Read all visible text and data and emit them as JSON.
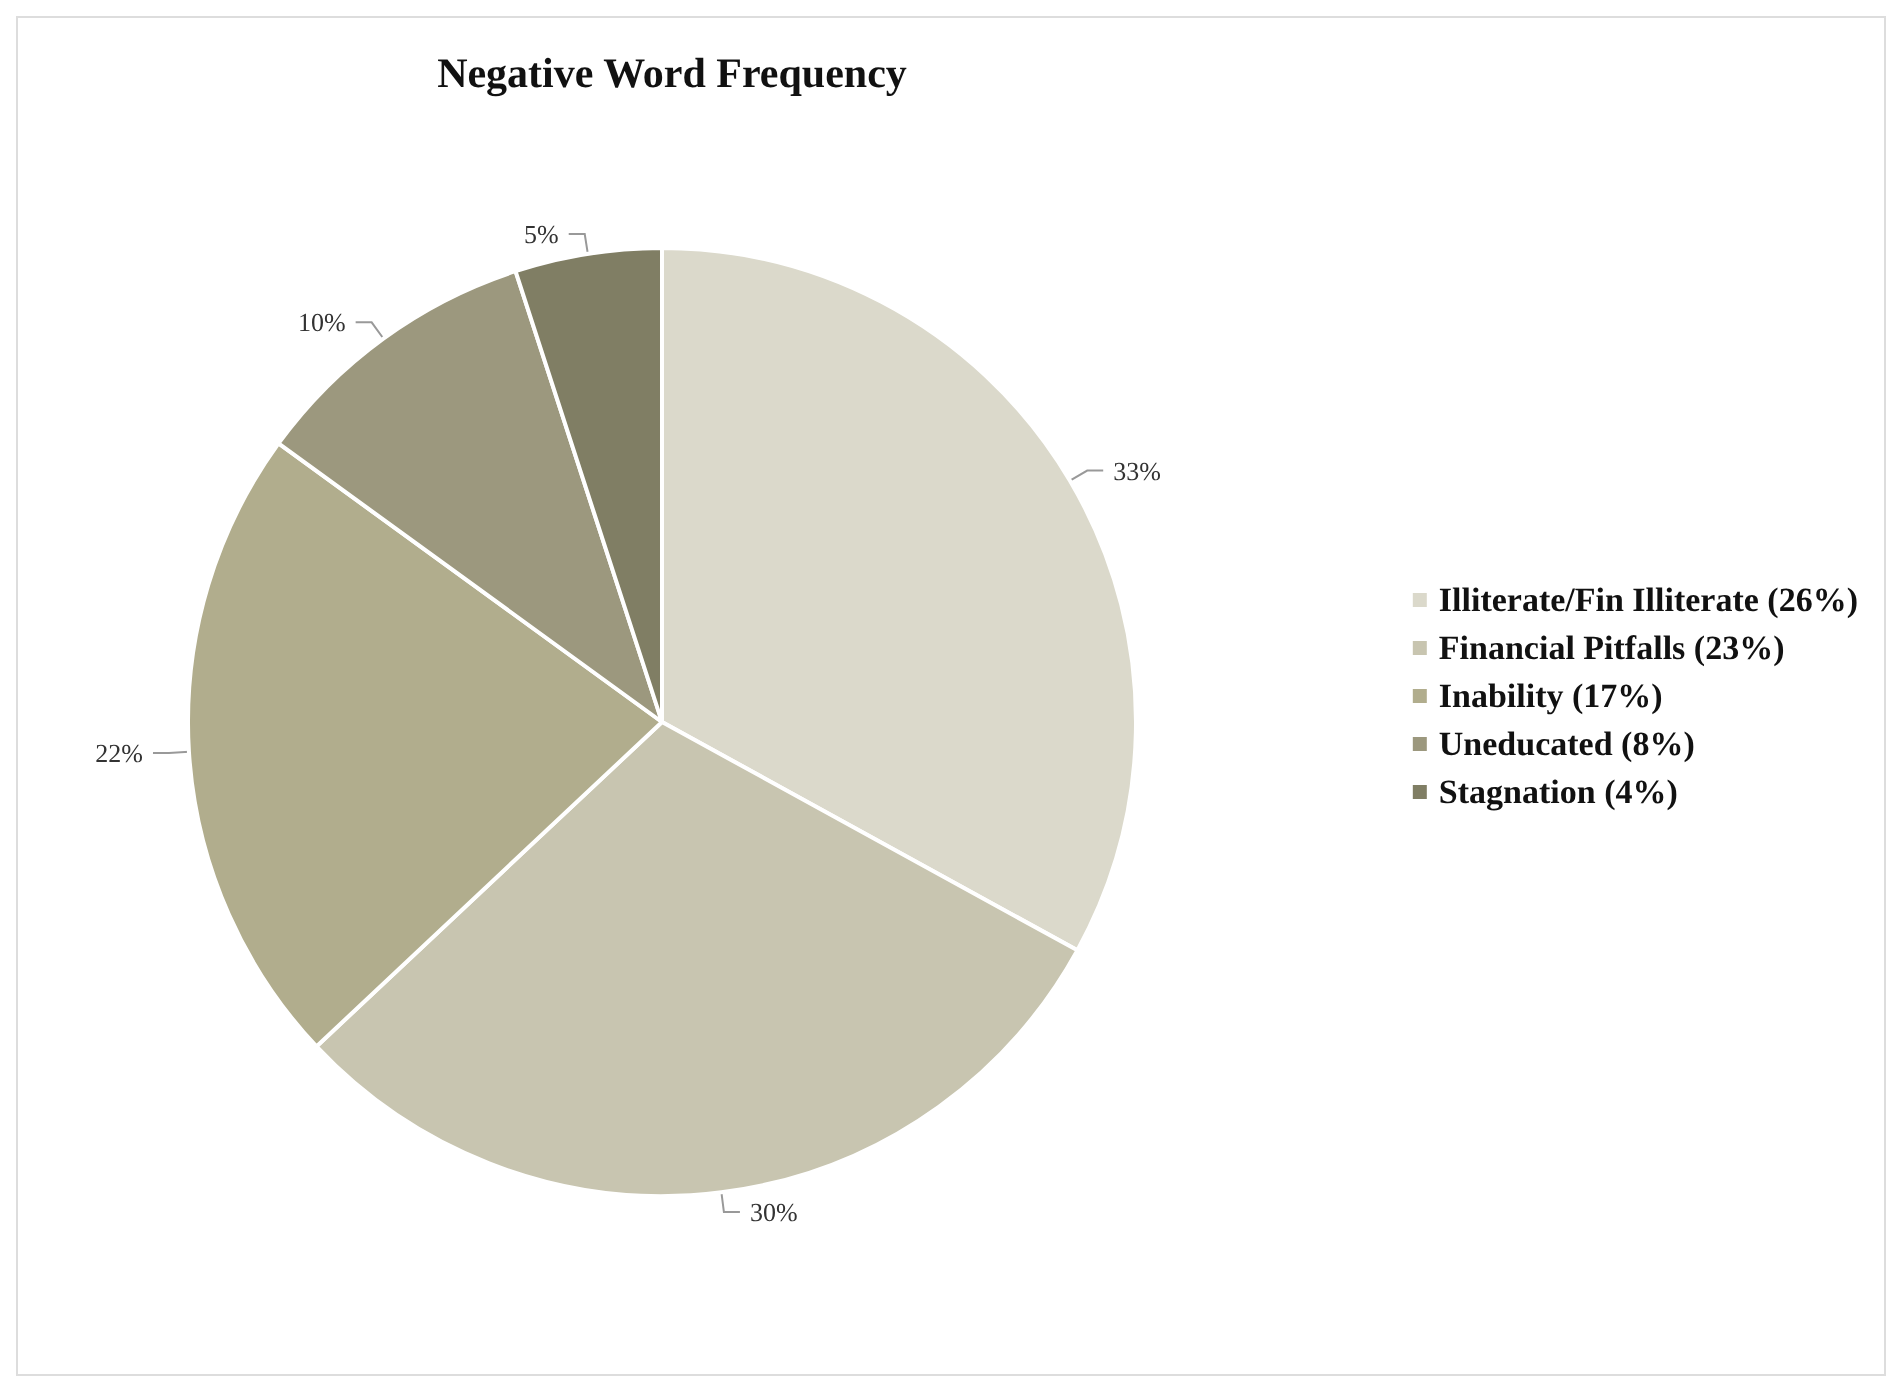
{
  "chart_data": {
    "type": "pie",
    "title": "Negative Word Frequency",
    "categories": [
      "Illiterate/Fin Illiterate (26%)",
      "Financial Pitfalls (23%)",
      "Inability (17%)",
      "Uneducated (8%)",
      "Stagnation (4%)"
    ],
    "values": [
      33,
      30,
      22,
      10,
      5
    ],
    "value_labels": [
      "33%",
      "30%",
      "22%",
      "10%",
      "5%"
    ],
    "colors": [
      "#dbd9cb",
      "#c8c5b0",
      "#b1ad8d",
      "#9c987e",
      "#807e64"
    ],
    "legend": "right"
  }
}
